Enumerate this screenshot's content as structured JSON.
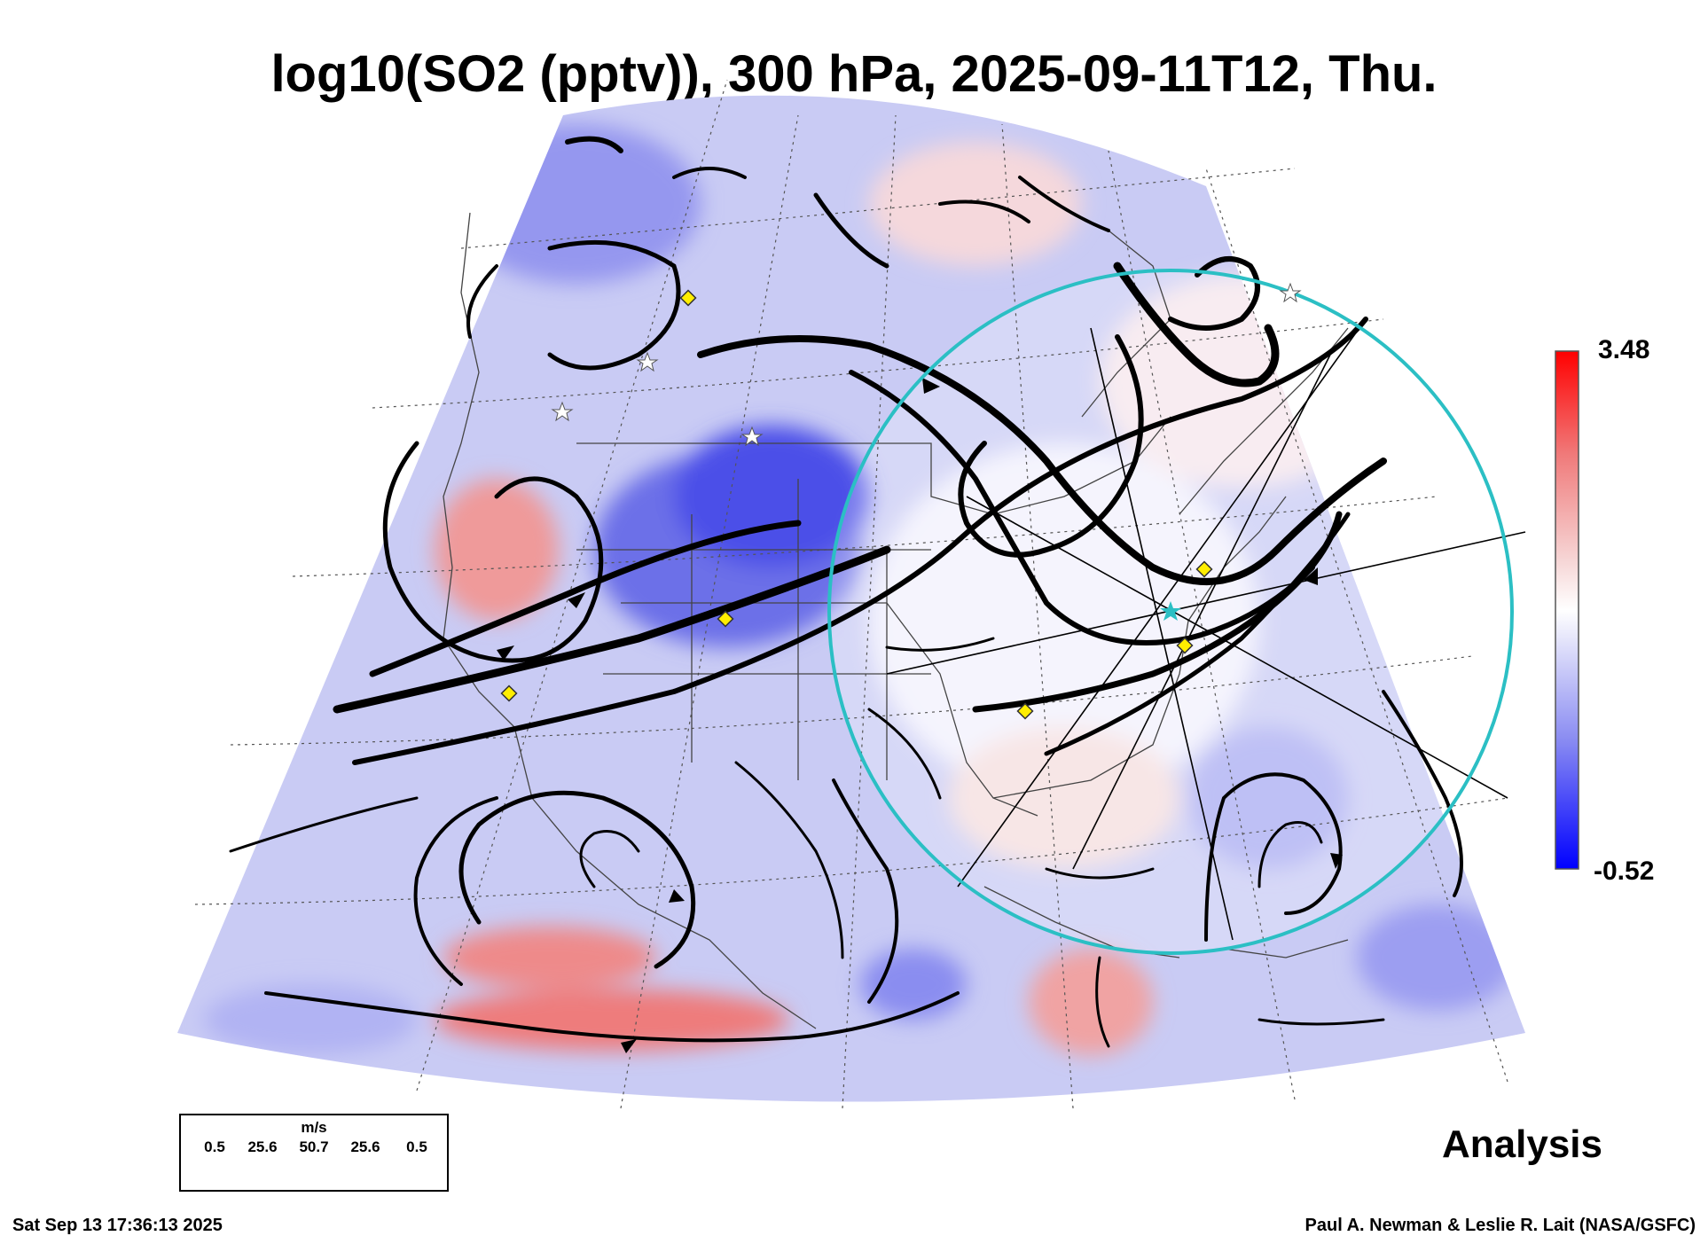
{
  "title": "log10(SO2 (pptv)), 300 hPa, 2025-09-11T12, Thu.",
  "colorbar": {
    "max_label": "3.48",
    "min_label": "-0.52",
    "colors": [
      "#0000ff",
      "#6a6cf0",
      "#c8c9f5",
      "#ffffff",
      "#f4c4c4",
      "#f07070",
      "#ff0000"
    ]
  },
  "wind_legend": {
    "units": "m/s",
    "values": [
      "0.5",
      "25.6",
      "50.7",
      "25.6",
      "0.5"
    ]
  },
  "analysis_label": "Analysis",
  "footer": {
    "timestamp": "Sat Sep 13 17:36:13 2025",
    "credit": "Paul A. Newman & Leslie R. Lait (NASA/GSFC)"
  },
  "map": {
    "projection": "conic sector",
    "field": "log10(SO2 (pptv))",
    "colors": {
      "background_field": "#c9cbf4",
      "high_so2": "#f08a8a",
      "low_so2": "#4b4fe8",
      "streamline": "#000000",
      "range_circle": "#2bbfc4",
      "site_marker": "#ffee00"
    },
    "icons": [
      "yellow-diamond-marker",
      "white-star-marker",
      "cyan-star-center-icon",
      "streamline-arrow"
    ]
  }
}
